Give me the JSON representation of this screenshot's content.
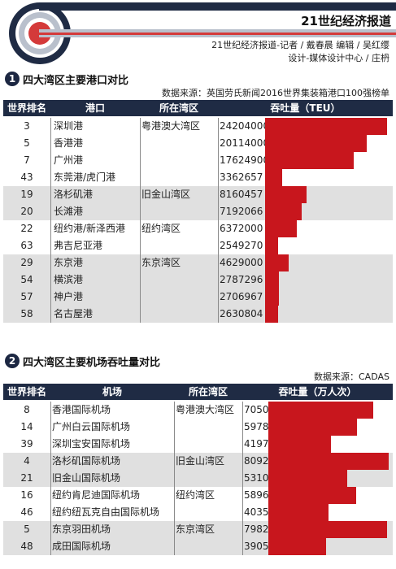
{
  "header": {
    "brand": "21世纪经济报道",
    "credit_line1": "21世纪经济报道-记者 / 戴春晨   编辑 / 吴红缨",
    "credit_line2": "设计-媒体设计中心 / 庄枬"
  },
  "colors": {
    "navy": "#1f2b44",
    "bar_red": "#c8161d",
    "shade": "#e0e0e0"
  },
  "section1": {
    "num": "1",
    "title": "四大湾区主要港口对比",
    "source": "数据来源：英国劳氏新闻2016世界集装箱港口100强榜单",
    "headers": {
      "rank": "世界排名",
      "name": "港口",
      "bay": "所在湾区",
      "value": "吞吐量（TEU）"
    }
  },
  "section2": {
    "num": "2",
    "title": "四大湾区主要机场吞吐量对比",
    "source": "数据来源：CADAS",
    "headers": {
      "rank": "世界排名",
      "name": "机场",
      "bay": "所在湾区",
      "value": "吞吐量（万人次）"
    }
  },
  "chart_data": [
    {
      "type": "bar",
      "title": "四大湾区主要港口对比",
      "unit": "TEU",
      "max": 24204000,
      "groups": [
        {
          "bay": "粤港澳大湾区",
          "rows": [
            {
              "rank": "3",
              "name": "深圳港",
              "value": 24204000
            },
            {
              "rank": "5",
              "name": "香港港",
              "value": 20114000
            },
            {
              "rank": "7",
              "name": "广州港",
              "value": 17624900
            },
            {
              "rank": "43",
              "name": "东莞港/虎门港",
              "value": 3362657
            }
          ]
        },
        {
          "bay": "旧金山湾区",
          "rows": [
            {
              "rank": "19",
              "name": "洛杉矶港",
              "value": 8160457
            },
            {
              "rank": "20",
              "name": "长滩港",
              "value": 7192066
            }
          ]
        },
        {
          "bay": "纽约湾区",
          "rows": [
            {
              "rank": "22",
              "name": "纽约港/新泽西港",
              "value": 6372000
            },
            {
              "rank": "63",
              "name": "弗吉尼亚港",
              "value": 2549270
            }
          ]
        },
        {
          "bay": "东京湾区",
          "rows": [
            {
              "rank": "29",
              "name": "东京港",
              "value": 4629000
            },
            {
              "rank": "54",
              "name": "横滨港",
              "value": 2787296
            },
            {
              "rank": "57",
              "name": "神户港",
              "value": 2706967
            },
            {
              "rank": "58",
              "name": "名古屋港",
              "value": 2630804
            }
          ]
        }
      ]
    },
    {
      "type": "bar",
      "title": "四大湾区主要机场吞吐量对比",
      "unit": "万人次",
      "max": 8092,
      "groups": [
        {
          "bay": "粤港澳大湾区",
          "rows": [
            {
              "rank": "8",
              "name": "香港国际机场",
              "value": 7050
            },
            {
              "rank": "14",
              "name": "广州白云国际机场",
              "value": 5978
            },
            {
              "rank": "39",
              "name": "深圳宝安国际机场",
              "value": 4197
            }
          ]
        },
        {
          "bay": "旧金山湾区",
          "rows": [
            {
              "rank": "4",
              "name": "洛杉矶国际机场",
              "value": 8092
            },
            {
              "rank": "21",
              "name": "旧金山国际机场",
              "value": 5310
            }
          ]
        },
        {
          "bay": "纽约湾区",
          "rows": [
            {
              "rank": "16",
              "name": "纽约肯尼迪国际机场",
              "value": 5896
            },
            {
              "rank": "46",
              "name": "纽约纽瓦克自由国际机场",
              "value": 4035
            }
          ]
        },
        {
          "bay": "东京湾区",
          "rows": [
            {
              "rank": "5",
              "name": "东京羽田机场",
              "value": 7982
            },
            {
              "rank": "48",
              "name": "成田国际机场",
              "value": 3905
            }
          ]
        }
      ]
    }
  ]
}
